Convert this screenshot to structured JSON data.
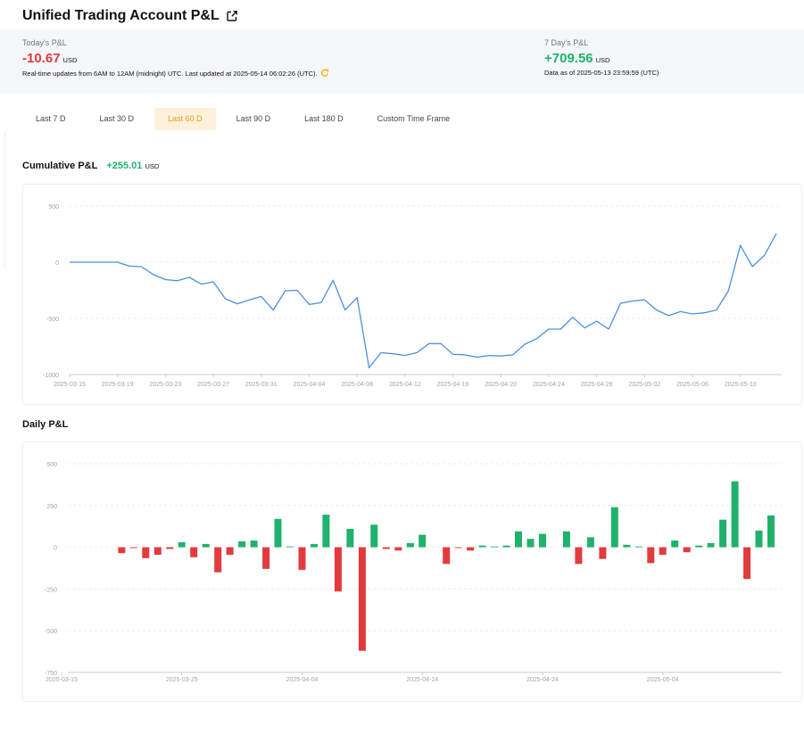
{
  "header": {
    "title": "Unified Trading Account P&L",
    "external_icon": "external-link-icon"
  },
  "today": {
    "label": "Today's P&L",
    "value": "-10.67",
    "unit": "USD",
    "note": "Real-time updates from 6AM to 12AM (midnight) UTC. Last updated at 2025-05-14 06:02:26 (UTC).",
    "refresh_icon": "refresh-icon"
  },
  "week": {
    "label": "7 Day's P&L",
    "value": "+709.56",
    "unit": "USD",
    "note": "Data as of 2025-05-13 23:59:59 (UTC)"
  },
  "tabs": [
    {
      "label": "Last 7 D",
      "active": false
    },
    {
      "label": "Last 30 D",
      "active": false
    },
    {
      "label": "Last 60 D",
      "active": true
    },
    {
      "label": "Last 90 D",
      "active": false
    },
    {
      "label": "Last 180 D",
      "active": false
    },
    {
      "label": "Custom Time Frame",
      "active": false
    }
  ],
  "colors": {
    "accent": "#f7a600",
    "positive": "#20b26c",
    "negative": "#e33a3e",
    "line": "#4a90e2"
  },
  "cumulative": {
    "title": "Cumulative P&L",
    "value": "+255.01",
    "unit": "USD"
  },
  "daily": {
    "title": "Daily P&L"
  },
  "chart_data": [
    {
      "type": "line",
      "title": "Cumulative P&L",
      "ylim": [
        -1000,
        500
      ],
      "yticks": [
        500,
        0,
        -500,
        -1000
      ],
      "grid": true,
      "x_start": "2025-03-15",
      "x_end": "2025-05-13",
      "xtick_labels": [
        "2025-03-15",
        "2025-03-19",
        "2025-03-23",
        "2025-03-27",
        "2025-03-31",
        "2025-04-04",
        "2025-04-08",
        "2025-04-12",
        "2025-04-16",
        "2025-04-20",
        "2025-04-24",
        "2025-04-28",
        "2025-05-02",
        "2025-05-06",
        "2025-05-10"
      ],
      "series": [
        {
          "values": [
            0,
            0,
            0,
            0,
            0,
            -35,
            -40,
            -110,
            -155,
            -165,
            -135,
            -195,
            -175,
            -325,
            -370,
            -335,
            -305,
            -425,
            -255,
            -250,
            -375,
            -360,
            -160,
            -425,
            -315,
            -940,
            -805,
            -815,
            -830,
            -805,
            -725,
            -725,
            -820,
            -825,
            -845,
            -830,
            -835,
            -825,
            -730,
            -680,
            -595,
            -595,
            -490,
            -585,
            -525,
            -595,
            -365,
            -345,
            -335,
            -425,
            -475,
            -440,
            -460,
            -450,
            -425,
            -255,
            150,
            -40,
            60,
            255
          ]
        }
      ]
    },
    {
      "type": "bar",
      "title": "Daily P&L",
      "ylim": [
        -750,
        500
      ],
      "yticks": [
        500,
        250,
        0,
        -250,
        -500,
        -750
      ],
      "grid": true,
      "x_start": "2025-03-15",
      "x_end": "2025-05-13",
      "xtick_labels": [
        "2025-03-15",
        "2025-03-25",
        "2025-04-04",
        "2025-04-14",
        "2025-04-24",
        "2025-05-04"
      ],
      "series": [
        {
          "values": [
            0,
            0,
            0,
            0,
            0,
            -35,
            -5,
            -65,
            -45,
            -10,
            30,
            -60,
            20,
            -150,
            -45,
            35,
            40,
            -130,
            170,
            5,
            -135,
            20,
            195,
            -265,
            110,
            -620,
            135,
            -10,
            -20,
            25,
            75,
            0,
            -100,
            -5,
            -20,
            10,
            5,
            10,
            95,
            50,
            80,
            0,
            95,
            -100,
            60,
            -70,
            240,
            15,
            5,
            -95,
            -45,
            40,
            -30,
            10,
            25,
            165,
            395,
            -190,
            100,
            190
          ]
        }
      ]
    }
  ]
}
